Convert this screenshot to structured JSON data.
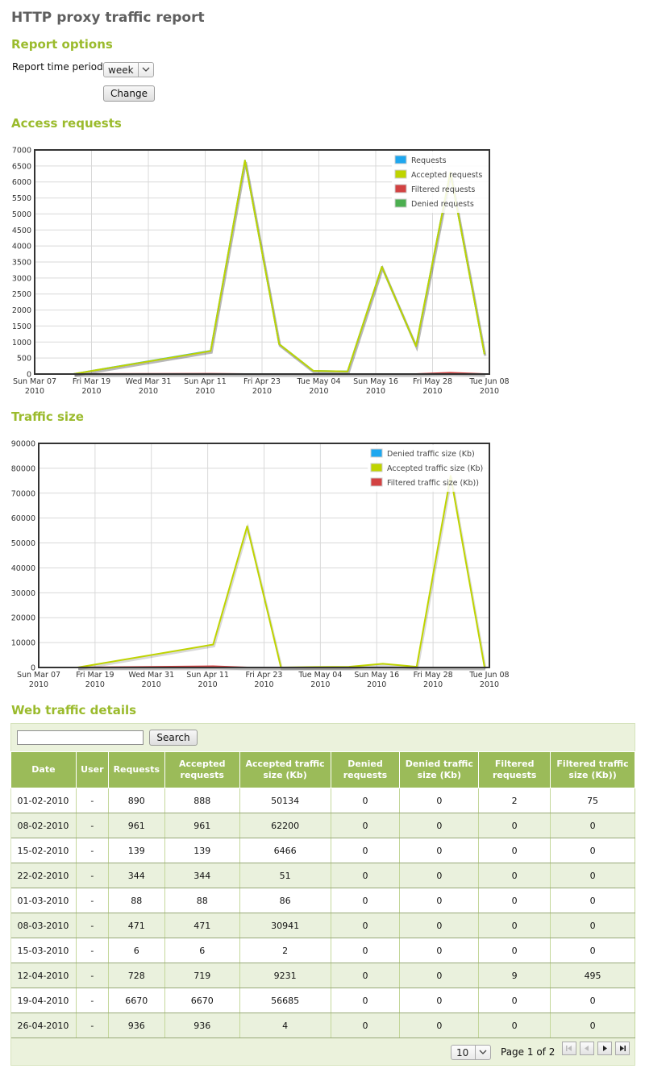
{
  "page_title": "HTTP proxy traffic report",
  "report_options": {
    "title": "Report options",
    "period_label": "Report time period:",
    "period_value": "week",
    "change_label": "Change"
  },
  "access_requests": {
    "title": "Access requests"
  },
  "traffic_size": {
    "title": "Traffic size"
  },
  "web_details": {
    "title": "Web traffic details",
    "search_label": "Search",
    "columns": [
      "Date",
      "User",
      "Requests",
      "Accepted requests",
      "Accepted traffic size (Kb)",
      "Denied requests",
      "Denied traffic size (Kb)",
      "Filtered requests",
      "Filtered traffic size (Kb))"
    ],
    "rows": [
      [
        "01-02-2010",
        "-",
        "890",
        "888",
        "50134",
        "0",
        "0",
        "2",
        "75"
      ],
      [
        "08-02-2010",
        "-",
        "961",
        "961",
        "62200",
        "0",
        "0",
        "0",
        "0"
      ],
      [
        "15-02-2010",
        "-",
        "139",
        "139",
        "6466",
        "0",
        "0",
        "0",
        "0"
      ],
      [
        "22-02-2010",
        "-",
        "344",
        "344",
        "51",
        "0",
        "0",
        "0",
        "0"
      ],
      [
        "01-03-2010",
        "-",
        "88",
        "88",
        "86",
        "0",
        "0",
        "0",
        "0"
      ],
      [
        "08-03-2010",
        "-",
        "471",
        "471",
        "30941",
        "0",
        "0",
        "0",
        "0"
      ],
      [
        "15-03-2010",
        "-",
        "6",
        "6",
        "2",
        "0",
        "0",
        "0",
        "0"
      ],
      [
        "12-04-2010",
        "-",
        "728",
        "719",
        "9231",
        "0",
        "0",
        "9",
        "495"
      ],
      [
        "19-04-2010",
        "-",
        "6670",
        "6670",
        "56685",
        "0",
        "0",
        "0",
        "0"
      ],
      [
        "26-04-2010",
        "-",
        "936",
        "936",
        "4",
        "0",
        "0",
        "0",
        "0"
      ]
    ],
    "page_size": "10",
    "page_info": "Page 1 of 2"
  },
  "colors": {
    "accent": "#9bbb2d",
    "requests": "#1ea7ef",
    "accepted": "#bfd400",
    "filtered": "#d24242",
    "denied": "#4caf50",
    "table_header": "#9bbb59"
  },
  "icons": {
    "select_arrow": "chevron-down-icon",
    "first_page": "first-page-icon",
    "prev_page": "prev-page-icon",
    "next_page": "next-page-icon",
    "last_page": "last-page-icon"
  },
  "chart_data": [
    {
      "type": "line",
      "x_ticks": [
        [
          "Sun Mar 07",
          "2010"
        ],
        [
          "Fri Mar 19",
          "2010"
        ],
        [
          "Wed Mar 31",
          "2010"
        ],
        [
          "Sun Apr 11",
          "2010"
        ],
        [
          "Fri Apr 23",
          "2010"
        ],
        [
          "Tue May 04",
          "2010"
        ],
        [
          "Sun May 16",
          "2010"
        ],
        [
          "Fri May 28",
          "2010"
        ],
        [
          "Tue Jun 08",
          "2010"
        ]
      ],
      "x_range": [
        "2010-03-07",
        "2010-06-08"
      ],
      "ylim": [
        0,
        7000
      ],
      "y_ticks": [
        0,
        500,
        1000,
        1500,
        2000,
        2500,
        3000,
        3500,
        4000,
        4500,
        5000,
        5500,
        6000,
        6500,
        7000
      ],
      "grid": true,
      "legend_position": "top-right",
      "x": [
        "2010-03-15",
        "2010-04-12",
        "2010-04-19",
        "2010-04-26",
        "2010-05-03",
        "2010-05-10",
        "2010-05-17",
        "2010-05-24",
        "2010-05-31",
        "2010-06-07"
      ],
      "series": [
        {
          "name": "Requests",
          "color": "#1ea7ef",
          "values": [
            6,
            728,
            6670,
            936,
            100,
            80,
            3350,
            870,
            6300,
            620
          ]
        },
        {
          "name": "Accepted requests",
          "color": "#bfd400",
          "values": [
            6,
            719,
            6670,
            936,
            100,
            80,
            3350,
            870,
            6300,
            620
          ]
        },
        {
          "name": "Filtered requests",
          "color": "#d24242",
          "values": [
            0,
            9,
            0,
            0,
            0,
            0,
            0,
            0,
            40,
            0
          ]
        },
        {
          "name": "Denied requests",
          "color": "#4caf50",
          "values": [
            0,
            0,
            0,
            0,
            0,
            0,
            0,
            0,
            0,
            0
          ]
        }
      ]
    },
    {
      "type": "line",
      "x_ticks": [
        [
          "Sun Mar 07",
          "2010"
        ],
        [
          "Fri Mar 19",
          "2010"
        ],
        [
          "Wed Mar 31",
          "2010"
        ],
        [
          "Sun Apr 11",
          "2010"
        ],
        [
          "Fri Apr 23",
          "2010"
        ],
        [
          "Tue May 04",
          "2010"
        ],
        [
          "Sun May 16",
          "2010"
        ],
        [
          "Fri May 28",
          "2010"
        ],
        [
          "Tue Jun 08",
          "2010"
        ]
      ],
      "x_range": [
        "2010-03-07",
        "2010-06-08"
      ],
      "ylim": [
        0,
        90000
      ],
      "y_ticks": [
        0,
        10000,
        20000,
        30000,
        40000,
        50000,
        60000,
        70000,
        80000,
        90000
      ],
      "grid": true,
      "legend_position": "top-right",
      "x": [
        "2010-03-15",
        "2010-04-12",
        "2010-04-19",
        "2010-04-26",
        "2010-05-03",
        "2010-05-10",
        "2010-05-17",
        "2010-05-24",
        "2010-05-31",
        "2010-06-07"
      ],
      "series": [
        {
          "name": "Denied traffic size (Kb)",
          "color": "#1ea7ef",
          "values": [
            0,
            0,
            0,
            0,
            0,
            0,
            0,
            0,
            0,
            0
          ]
        },
        {
          "name": "Accepted traffic size (Kb)",
          "color": "#bfd400",
          "values": [
            2,
            9231,
            56685,
            4,
            200,
            300,
            1500,
            300,
            77000,
            100
          ]
        },
        {
          "name": "Filtered traffic size (Kb))",
          "color": "#d24242",
          "values": [
            0,
            495,
            0,
            0,
            0,
            0,
            0,
            0,
            0,
            0
          ]
        }
      ]
    }
  ]
}
